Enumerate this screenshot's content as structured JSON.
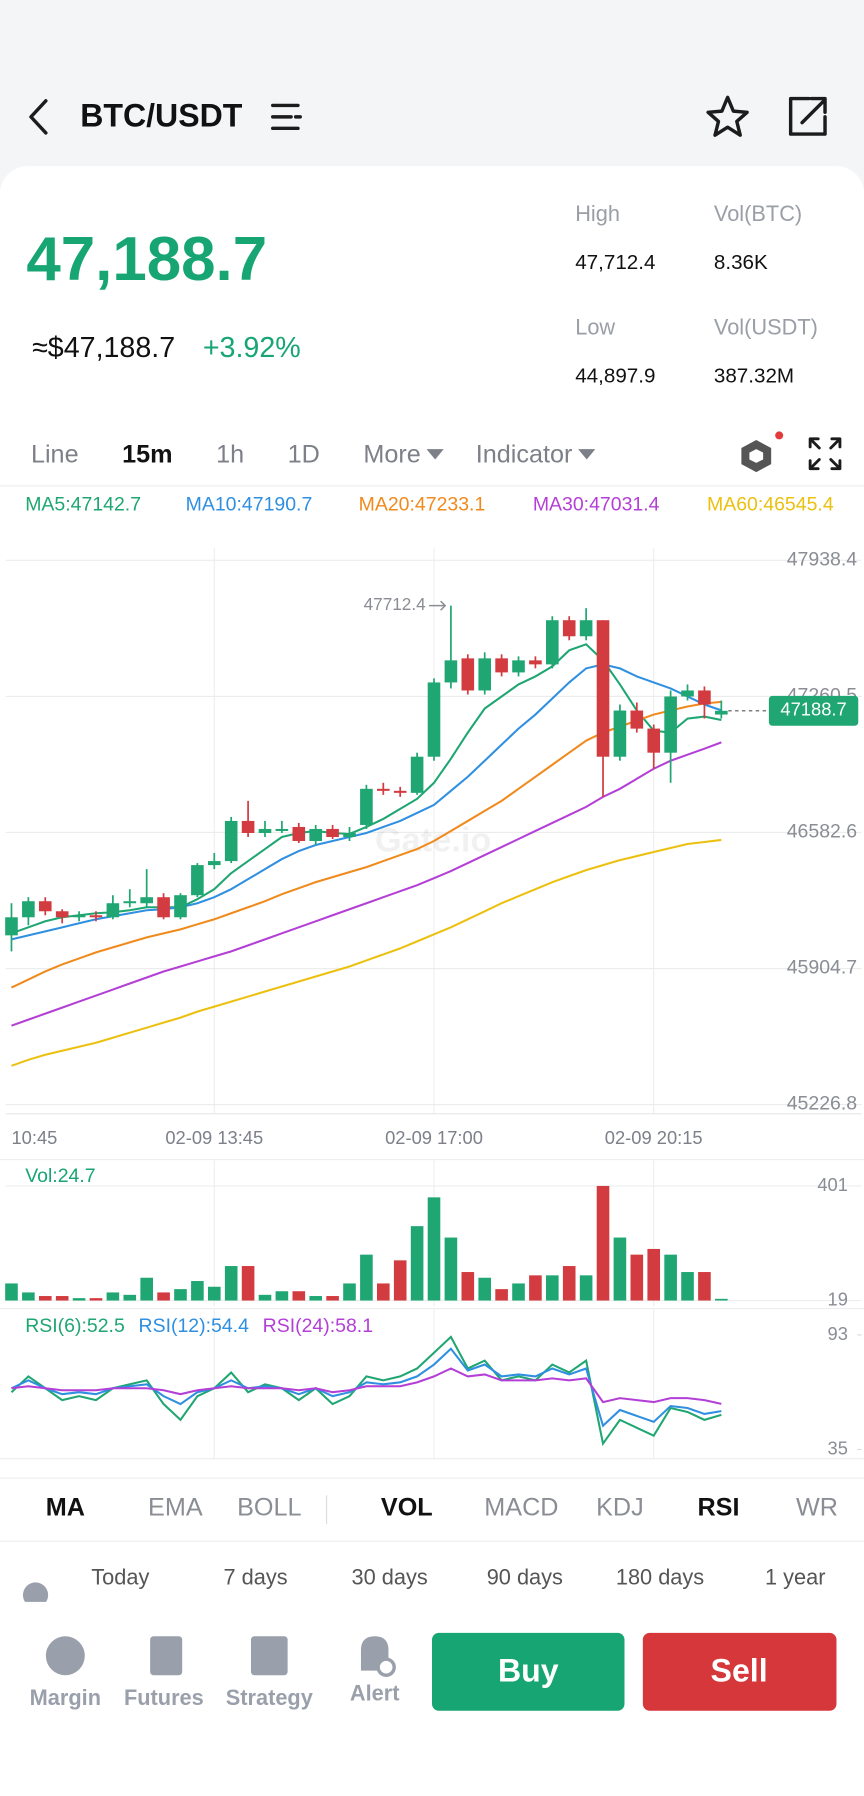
{
  "header": {
    "title": "BTC/USDT"
  },
  "ticker": {
    "last": "47,188.7",
    "usd": "≈$47,188.7",
    "change": "+3.92%",
    "stats": [
      {
        "label": "High",
        "value": "47,712.4"
      },
      {
        "label": "Vol(BTC)",
        "value": "8.36K"
      },
      {
        "label": "Low",
        "value": "44,897.9"
      },
      {
        "label": "Vol(USDT)",
        "value": "387.32M"
      }
    ]
  },
  "timeframes": [
    {
      "label": "Line"
    },
    {
      "label": "15m",
      "active": true
    },
    {
      "label": "1h"
    },
    {
      "label": "1D"
    },
    {
      "label": "More",
      "menu": true
    },
    {
      "label": "Indicator",
      "menu": true
    }
  ],
  "chart_data": [
    {
      "type": "candlestick",
      "watermark": "Gate.io",
      "up_color": "#1fa672",
      "down_color": "#d23b3f",
      "categories": [
        "10:45",
        null,
        null,
        null,
        null,
        null,
        null,
        null,
        null,
        null,
        null,
        null,
        "02-09 13:45",
        null,
        null,
        null,
        null,
        null,
        null,
        null,
        null,
        null,
        null,
        null,
        null,
        "02-09 17:00",
        null,
        null,
        null,
        null,
        null,
        null,
        null,
        null,
        null,
        null,
        null,
        null,
        "02-09 20:15",
        null,
        null,
        null,
        null
      ],
      "open": [
        46070,
        46160,
        46240,
        46190,
        46160,
        46170,
        46160,
        46230,
        46230,
        46260,
        46160,
        46270,
        46420,
        46440,
        46640,
        46580,
        46590,
        46610,
        46540,
        46600,
        46560,
        46620,
        46800,
        46790,
        46780,
        46960,
        47330,
        47450,
        47290,
        47450,
        47380,
        47440,
        47420,
        47640,
        47560,
        47640,
        46960,
        47190,
        47100,
        46980,
        47260,
        47290,
        47170
      ],
      "high": [
        46230,
        46260,
        46260,
        46200,
        46190,
        46190,
        46270,
        46300,
        46400,
        46280,
        46280,
        46430,
        46480,
        46660,
        46740,
        46640,
        46640,
        46630,
        46620,
        46620,
        46610,
        46820,
        46830,
        46810,
        46980,
        47350,
        47712.4,
        47470,
        47480,
        47470,
        47460,
        47460,
        47660,
        47660,
        47700,
        47640,
        47220,
        47230,
        47120,
        47290,
        47320,
        47310,
        47240
      ],
      "low": [
        45990,
        46120,
        46170,
        46130,
        46140,
        46140,
        46150,
        46210,
        46210,
        46150,
        46150,
        46260,
        46400,
        46430,
        46560,
        46560,
        46580,
        46530,
        46520,
        46550,
        46540,
        46600,
        46770,
        46760,
        46770,
        46940,
        47300,
        47270,
        47270,
        47360,
        47360,
        47400,
        47400,
        47540,
        47540,
        46760,
        46940,
        47080,
        46900,
        46830,
        47240,
        47150,
        47150
      ],
      "close": [
        46160,
        46240,
        46190,
        46160,
        46170,
        46160,
        46230,
        46240,
        46260,
        46160,
        46270,
        46420,
        46440,
        46640,
        46580,
        46600,
        46600,
        46540,
        46600,
        46560,
        46580,
        46800,
        46790,
        46780,
        46960,
        47330,
        47440,
        47290,
        47450,
        47380,
        47440,
        47420,
        47640,
        47560,
        47640,
        46960,
        47190,
        47100,
        46980,
        47260,
        47290,
        47220,
        47188.7
      ],
      "series": [
        {
          "name": "MA5:47142.7",
          "color": "#1fa672",
          "values": [
            46080,
            46110,
            46140,
            46160,
            46170,
            46180,
            46185,
            46195,
            46210,
            46210,
            46210,
            46250,
            46300,
            46380,
            46440,
            46500,
            46560,
            46580,
            46590,
            46580,
            46575,
            46610,
            46650,
            46700,
            46750,
            46830,
            46950,
            47080,
            47200,
            47260,
            47320,
            47360,
            47410,
            47490,
            47520,
            47440,
            47320,
            47190,
            47090,
            47080,
            47150,
            47160,
            47142.7
          ]
        },
        {
          "name": "MA10:47190.7",
          "color": "#2f8fe0",
          "values": [
            46050,
            46070,
            46090,
            46110,
            46130,
            46150,
            46165,
            46180,
            46195,
            46200,
            46210,
            46230,
            46260,
            46300,
            46350,
            46400,
            46450,
            46490,
            46520,
            46540,
            46560,
            46580,
            46610,
            46640,
            46680,
            46720,
            46790,
            46860,
            46940,
            47020,
            47100,
            47170,
            47250,
            47330,
            47400,
            47420,
            47400,
            47360,
            47330,
            47300,
            47260,
            47220,
            47190.7
          ]
        },
        {
          "name": "MA20:47233.1",
          "color": "#f08a1c",
          "values": [
            45810,
            45850,
            45890,
            45925,
            45955,
            45985,
            46010,
            46035,
            46060,
            46080,
            46100,
            46125,
            46150,
            46180,
            46210,
            46240,
            46275,
            46305,
            46335,
            46360,
            46385,
            46410,
            46440,
            46470,
            46500,
            46540,
            46590,
            46640,
            46690,
            46740,
            46800,
            46860,
            46920,
            46980,
            47040,
            47080,
            47110,
            47140,
            47170,
            47190,
            47210,
            47225,
            47233.1
          ]
        },
        {
          "name": "MA30:47031.4",
          "color": "#b43fd6",
          "values": [
            45620,
            45650,
            45680,
            45710,
            45740,
            45770,
            45800,
            45830,
            45860,
            45890,
            45915,
            45940,
            45965,
            45990,
            46020,
            46050,
            46080,
            46110,
            46140,
            46170,
            46200,
            46230,
            46260,
            46290,
            46320,
            46355,
            46390,
            46430,
            46470,
            46510,
            46550,
            46590,
            46630,
            46670,
            46710,
            46760,
            46800,
            46850,
            46900,
            46940,
            46970,
            47000,
            47031.4
          ]
        },
        {
          "name": "MA60:46545.4",
          "color": "#ecc00f",
          "values": [
            45420,
            45450,
            45475,
            45495,
            45515,
            45535,
            45560,
            45585,
            45610,
            45635,
            45660,
            45690,
            45715,
            45740,
            45765,
            45790,
            45815,
            45840,
            45865,
            45890,
            45915,
            45945,
            45975,
            46005,
            46040,
            46075,
            46110,
            46150,
            46190,
            46230,
            46265,
            46300,
            46335,
            46365,
            46395,
            46420,
            46445,
            46465,
            46485,
            46505,
            46525,
            46535,
            46545.4
          ]
        }
      ],
      "ylim": [
        45226.8,
        47938.4
      ],
      "yticks": [
        45226.8,
        45904.7,
        46582.6,
        47260.5,
        47938.4
      ],
      "grid": true
    },
    {
      "type": "bar",
      "title": "Vol:24.7",
      "values": [
        76,
        46,
        34,
        34,
        27,
        27,
        46,
        38,
        95,
        46,
        57,
        84,
        65,
        134,
        134,
        38,
        50,
        50,
        34,
        34,
        76,
        172,
        76,
        153,
        267,
        363,
        229,
        114,
        95,
        57,
        76,
        103,
        103,
        134,
        103,
        401,
        229,
        172,
        191,
        172,
        114,
        114,
        24.7
      ],
      "ylim": [
        19,
        401
      ],
      "yticks": [
        19,
        401
      ]
    },
    {
      "type": "line",
      "series": [
        {
          "name": "RSI(6):52.5",
          "color": "#1fa672",
          "values": [
            64,
            72,
            66,
            60,
            62,
            60,
            66,
            68,
            70,
            58,
            50,
            62,
            66,
            74,
            64,
            68,
            66,
            60,
            66,
            58,
            62,
            72,
            70,
            72,
            76,
            84,
            92,
            76,
            80,
            70,
            72,
            70,
            78,
            74,
            80,
            38,
            50,
            46,
            42,
            56,
            54,
            50,
            52.5
          ]
        },
        {
          "name": "RSI(12):54.4",
          "color": "#2f8fe0",
          "values": [
            66,
            70,
            66,
            63,
            64,
            63,
            66,
            67,
            68,
            62,
            58,
            64,
            66,
            70,
            66,
            67,
            66,
            63,
            66,
            62,
            64,
            69,
            68,
            69,
            72,
            78,
            86,
            75,
            78,
            72,
            73,
            72,
            76,
            73,
            76,
            47,
            55,
            52,
            49,
            57,
            56,
            53,
            54.4
          ]
        },
        {
          "name": "RSI(24):58.1",
          "color": "#b43fd6",
          "values": [
            66,
            67,
            66,
            65,
            65,
            65,
            66,
            66,
            66,
            65,
            63,
            65,
            66,
            67,
            66,
            66,
            66,
            65,
            66,
            64,
            65,
            67,
            67,
            67,
            69,
            72,
            76,
            72,
            73,
            70,
            70,
            70,
            71,
            70,
            71,
            59,
            61,
            60,
            59,
            61,
            61,
            60,
            58.1
          ]
        }
      ],
      "ylim": [
        35,
        93
      ],
      "yticks": [
        35,
        93
      ]
    }
  ],
  "indicator_tabs": {
    "main": [
      {
        "label": "MA",
        "active": true
      },
      {
        "label": "EMA"
      },
      {
        "label": "BOLL"
      }
    ],
    "sub": [
      {
        "label": "VOL",
        "active": true
      },
      {
        "label": "MACD"
      },
      {
        "label": "KDJ"
      },
      {
        "label": "RSI",
        "active": true
      },
      {
        "label": "WR"
      }
    ]
  },
  "ranges": [
    "Today",
    "7 days",
    "30 days",
    "90 days",
    "180 days",
    "1 year"
  ],
  "nav": [
    {
      "label": "Margin"
    },
    {
      "label": "Futures"
    },
    {
      "label": "Strategy"
    },
    {
      "label": "Alert"
    }
  ],
  "buttons": {
    "buy": "Buy",
    "sell": "Sell"
  }
}
